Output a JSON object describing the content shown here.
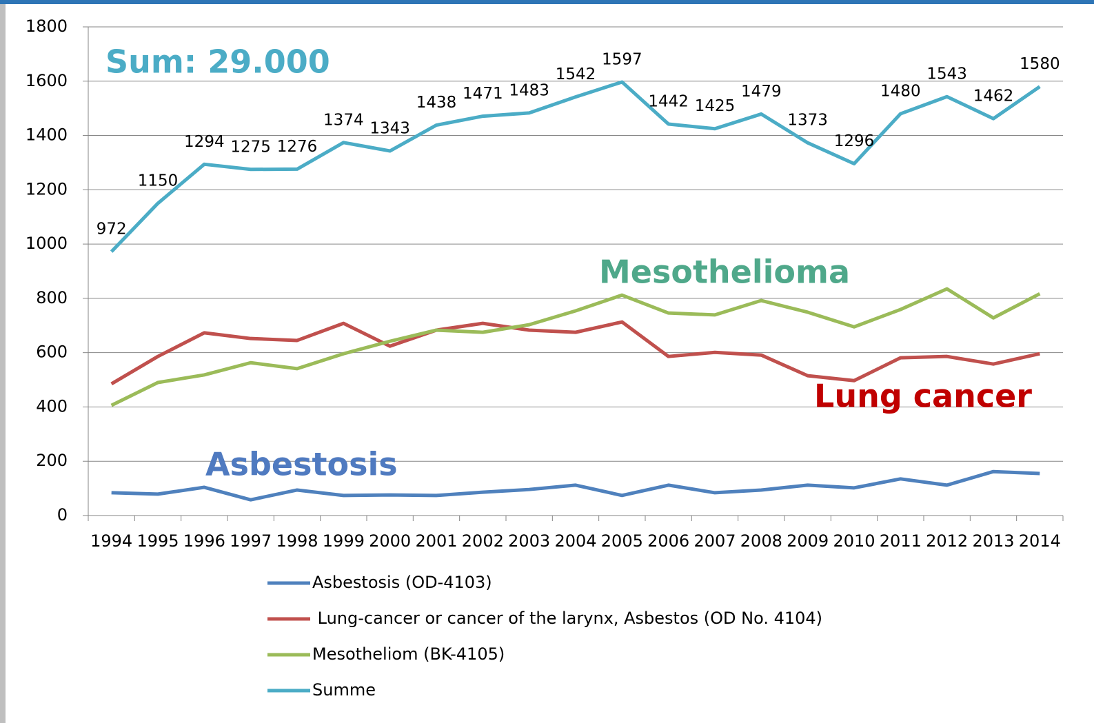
{
  "chart_data": {
    "type": "line",
    "categories": [
      "1994",
      "1995",
      "1996",
      "1997",
      "1998",
      "1999",
      "2000",
      "2001",
      "2002",
      "2003",
      "2004",
      "2005",
      "2006",
      "2007",
      "2008",
      "2009",
      "2010",
      "2011",
      "2012",
      "2013",
      "2014"
    ],
    "series": [
      {
        "name": "Asbestosis (OD-4103)",
        "color": "#4f81bd",
        "values": [
          84,
          79,
          104,
          58,
          94,
          74,
          76,
          74,
          86,
          96,
          112,
          74,
          112,
          84,
          94,
          112,
          102,
          135,
          112,
          162,
          155
        ]
      },
      {
        "name": " Lung-cancer or cancer of the larynx, Asbestos (OD No. 4104)",
        "color": "#c0504d",
        "values": [
          485,
          586,
          673,
          652,
          645,
          708,
          624,
          683,
          708,
          683,
          675,
          713,
          586,
          601,
          591,
          515,
          497,
          581,
          586,
          558,
          596
        ]
      },
      {
        "name": "Mesotheliom (BK-4105)",
        "color": "#9bbb59",
        "values": [
          406,
          490,
          518,
          563,
          541,
          596,
          642,
          683,
          675,
          703,
          754,
          812,
          746,
          739,
          792,
          749,
          695,
          759,
          835,
          728,
          817
        ]
      },
      {
        "name": "Summe",
        "color": "#4bacc6",
        "values": [
          972,
          1150,
          1294,
          1275,
          1276,
          1374,
          1343,
          1438,
          1471,
          1483,
          1542,
          1597,
          1442,
          1425,
          1479,
          1373,
          1296,
          1480,
          1543,
          1462,
          1580
        ],
        "data_labels": true
      }
    ],
    "annotations": [
      {
        "text": "Sum: 29.000",
        "color": "#4bacc6"
      },
      {
        "text": "Mesothelioma",
        "color": "#4fa88a"
      },
      {
        "text": "Lung cancer",
        "color": "#c00000"
      },
      {
        "text": "Asbestosis",
        "color": "#4f7ac0"
      }
    ],
    "ylim": [
      0,
      1800
    ],
    "yticks": [
      0,
      200,
      400,
      600,
      800,
      1000,
      1200,
      1400,
      1600,
      1800
    ],
    "grid": true
  }
}
